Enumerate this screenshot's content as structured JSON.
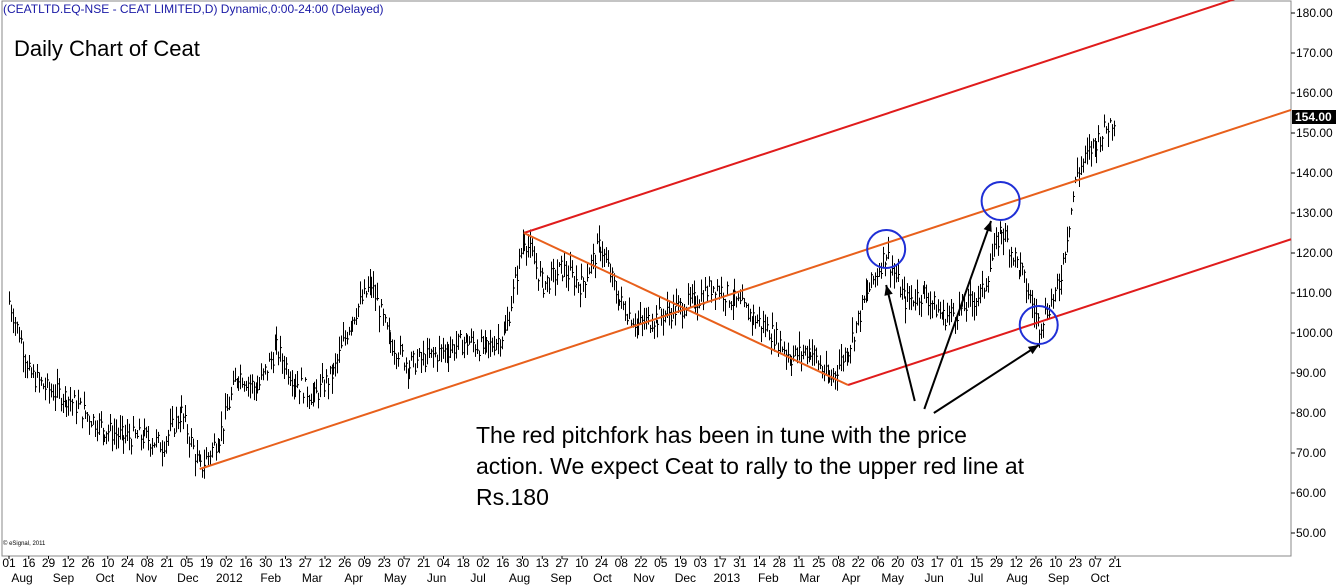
{
  "header": "(CEATLTD.EQ-NSE - CEAT LIMITED,D) Dynamic,0:00-24:00 (Delayed)",
  "credit": "© eSignal, 2011",
  "chart_data": {
    "type": "bar",
    "title": "Daily Chart of Ceat",
    "annotation": "The red pitchfork has been in tune with the price action. We expect Ceat to rally to the upper red line at Rs.180",
    "ylim": [
      45,
      182
    ],
    "y_ticks": [
      50,
      60,
      70,
      80,
      90,
      100,
      110,
      120,
      130,
      140,
      150,
      160,
      170,
      180
    ],
    "y_tick_labels": [
      "50.00",
      "60.00",
      "70.00",
      "80.00",
      "90.00",
      "100.00",
      "110.00",
      "120.00",
      "130.00",
      "140.00",
      "150.00",
      "160.00",
      "170.00",
      "180.00"
    ],
    "last_price_label": "154.00",
    "last_price": 154,
    "x_day_labels": [
      "01",
      "16",
      "29",
      "12",
      "26",
      "10",
      "24",
      "08",
      "21",
      "05",
      "19",
      "02",
      "16",
      "30",
      "13",
      "27",
      "12",
      "26",
      "09",
      "23",
      "07",
      "21",
      "04",
      "18",
      "02",
      "16",
      "30",
      "13",
      "27",
      "10",
      "24",
      "08",
      "22",
      "05",
      "19",
      "03",
      "17",
      "31",
      "14",
      "28",
      "11",
      "25",
      "08",
      "22",
      "06",
      "20",
      "03",
      "17",
      "01",
      "15",
      "29",
      "12",
      "26",
      "10",
      "23",
      "07",
      "21"
    ],
    "x_month_labels": [
      "Aug",
      "Sep",
      "Oct",
      "Nov",
      "Dec",
      "2012",
      "Feb",
      "Mar",
      "Apr",
      "May",
      "Jun",
      "Jul",
      "Aug",
      "Sep",
      "Oct",
      "Nov",
      "Dec",
      "2013",
      "Feb",
      "Mar",
      "Apr",
      "May",
      "Jun",
      "Jul",
      "Aug",
      "Sep",
      "Oct"
    ],
    "price_path": [
      {
        "date": "2011-08-01",
        "close": 108
      },
      {
        "date": "2011-08-08",
        "close": 100
      },
      {
        "date": "2011-08-16",
        "close": 90
      },
      {
        "date": "2011-08-29",
        "close": 86
      },
      {
        "date": "2011-09-12",
        "close": 84
      },
      {
        "date": "2011-09-26",
        "close": 80
      },
      {
        "date": "2011-10-10",
        "close": 76
      },
      {
        "date": "2011-10-24",
        "close": 74
      },
      {
        "date": "2011-11-08",
        "close": 74
      },
      {
        "date": "2011-11-21",
        "close": 72
      },
      {
        "date": "2011-12-05",
        "close": 80
      },
      {
        "date": "2011-12-19",
        "close": 66
      },
      {
        "date": "2012-01-02",
        "close": 74
      },
      {
        "date": "2012-01-16",
        "close": 90
      },
      {
        "date": "2012-01-30",
        "close": 86
      },
      {
        "date": "2012-02-13",
        "close": 96
      },
      {
        "date": "2012-02-27",
        "close": 88
      },
      {
        "date": "2012-03-12",
        "close": 84
      },
      {
        "date": "2012-03-26",
        "close": 90
      },
      {
        "date": "2012-04-09",
        "close": 104
      },
      {
        "date": "2012-04-23",
        "close": 112
      },
      {
        "date": "2012-05-07",
        "close": 98
      },
      {
        "date": "2012-05-21",
        "close": 92
      },
      {
        "date": "2012-06-04",
        "close": 94
      },
      {
        "date": "2012-06-18",
        "close": 96
      },
      {
        "date": "2012-07-02",
        "close": 98
      },
      {
        "date": "2012-07-16",
        "close": 96
      },
      {
        "date": "2012-07-30",
        "close": 100
      },
      {
        "date": "2012-08-13",
        "close": 124
      },
      {
        "date": "2012-08-27",
        "close": 112
      },
      {
        "date": "2012-09-10",
        "close": 116
      },
      {
        "date": "2012-09-24",
        "close": 112
      },
      {
        "date": "2012-10-08",
        "close": 122
      },
      {
        "date": "2012-10-22",
        "close": 108
      },
      {
        "date": "2012-11-05",
        "close": 102
      },
      {
        "date": "2012-11-19",
        "close": 104
      },
      {
        "date": "2012-12-03",
        "close": 106
      },
      {
        "date": "2012-12-17",
        "close": 108
      },
      {
        "date": "2012-12-31",
        "close": 112
      },
      {
        "date": "2013-01-14",
        "close": 108
      },
      {
        "date": "2013-01-28",
        "close": 104
      },
      {
        "date": "2013-02-11",
        "close": 100
      },
      {
        "date": "2013-02-25",
        "close": 94
      },
      {
        "date": "2013-03-11",
        "close": 96
      },
      {
        "date": "2013-03-25",
        "close": 88
      },
      {
        "date": "2013-04-08",
        "close": 96
      },
      {
        "date": "2013-04-22",
        "close": 110
      },
      {
        "date": "2013-05-06",
        "close": 120
      },
      {
        "date": "2013-05-20",
        "close": 108
      },
      {
        "date": "2013-06-03",
        "close": 110
      },
      {
        "date": "2013-06-17",
        "close": 104
      },
      {
        "date": "2013-07-01",
        "close": 106
      },
      {
        "date": "2013-07-15",
        "close": 110
      },
      {
        "date": "2013-07-29",
        "close": 126
      },
      {
        "date": "2013-08-12",
        "close": 116
      },
      {
        "date": "2013-08-26",
        "close": 102
      },
      {
        "date": "2013-09-10",
        "close": 112
      },
      {
        "date": "2013-09-23",
        "close": 140
      },
      {
        "date": "2013-10-07",
        "close": 148
      },
      {
        "date": "2013-10-21",
        "close": 154
      }
    ],
    "pitchfork": {
      "pivots": [
        {
          "date": "2011-12-19",
          "price": 66
        },
        {
          "date": "2012-08-13",
          "price": 125
        },
        {
          "date": "2013-04-08",
          "price": 87
        }
      ],
      "median_color": "#e8601c",
      "tine_color": "#e01c1c"
    },
    "circles": [
      {
        "date": "2013-05-06",
        "price": 121
      },
      {
        "date": "2013-07-29",
        "price": 133
      },
      {
        "date": "2013-08-26",
        "price": 102
      }
    ],
    "arrows": [
      {
        "from_date": "2013-05-27",
        "from_price": 83,
        "to_date": "2013-05-06",
        "to_price": 112
      },
      {
        "from_date": "2013-06-03",
        "from_price": 81,
        "to_date": "2013-07-22",
        "to_price": 128
      },
      {
        "from_date": "2013-06-10",
        "from_price": 80,
        "to_date": "2013-08-26",
        "to_price": 97
      }
    ]
  }
}
